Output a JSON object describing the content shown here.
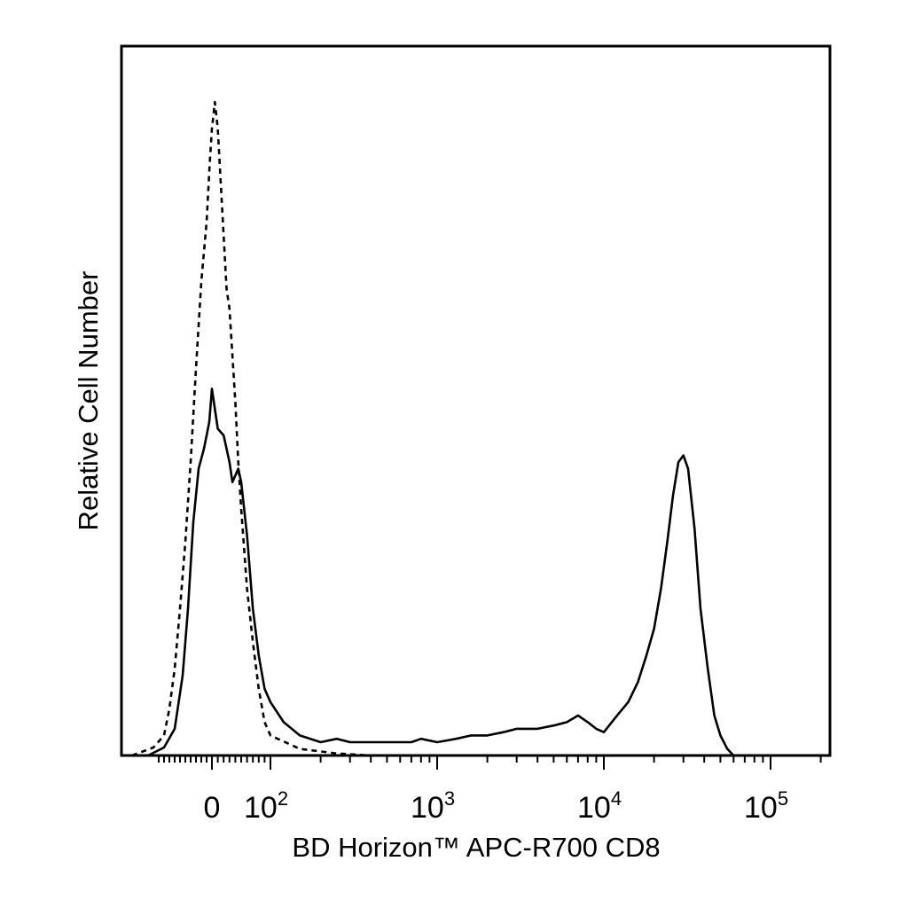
{
  "chart_data": {
    "type": "line",
    "title": "",
    "xlabel": "BD Horizon™ APC-R700 CD8",
    "ylabel": "Relative Cell Number",
    "x_scale": "biexponential (linear near 0, log above)",
    "xlim": [
      -200,
      250000
    ],
    "ylim": [
      0,
      1.0
    ],
    "grid": false,
    "legend": "none",
    "x_tick_labels": [
      {
        "value": 0,
        "label": "0"
      },
      {
        "value": 100,
        "base": "10",
        "exp": "2"
      },
      {
        "value": 1000,
        "base": "10",
        "exp": "3"
      },
      {
        "value": 10000,
        "base": "10",
        "exp": "4"
      },
      {
        "value": 100000,
        "base": "10",
        "exp": "5"
      }
    ],
    "series": [
      {
        "style": "dashed",
        "color": "#000000",
        "points": [
          [
            -150,
            0.0
          ],
          [
            -110,
            0.012
          ],
          [
            -90,
            0.03
          ],
          [
            -80,
            0.07
          ],
          [
            -70,
            0.13
          ],
          [
            -60,
            0.22
          ],
          [
            -50,
            0.32
          ],
          [
            -40,
            0.44
          ],
          [
            -30,
            0.58
          ],
          [
            -20,
            0.71
          ],
          [
            -10,
            0.8
          ],
          [
            -4,
            0.89
          ],
          [
            0,
            0.94
          ],
          [
            5,
            0.98
          ],
          [
            10,
            0.94
          ],
          [
            15,
            0.86
          ],
          [
            20,
            0.78
          ],
          [
            25,
            0.7
          ],
          [
            30,
            0.67
          ],
          [
            35,
            0.6
          ],
          [
            40,
            0.53
          ],
          [
            45,
            0.44
          ],
          [
            50,
            0.37
          ],
          [
            55,
            0.31
          ],
          [
            60,
            0.25
          ],
          [
            70,
            0.17
          ],
          [
            80,
            0.1
          ],
          [
            90,
            0.05
          ],
          [
            100,
            0.03
          ],
          [
            150,
            0.01
          ],
          [
            250,
            0.003
          ],
          [
            400,
            0.0
          ]
        ]
      },
      {
        "style": "solid",
        "color": "#000000",
        "points": [
          [
            -120,
            0.0
          ],
          [
            -90,
            0.012
          ],
          [
            -70,
            0.04
          ],
          [
            -55,
            0.12
          ],
          [
            -45,
            0.22
          ],
          [
            -35,
            0.35
          ],
          [
            -25,
            0.43
          ],
          [
            -15,
            0.46
          ],
          [
            -5,
            0.5
          ],
          [
            0,
            0.55
          ],
          [
            5,
            0.52
          ],
          [
            10,
            0.49
          ],
          [
            20,
            0.48
          ],
          [
            30,
            0.44
          ],
          [
            35,
            0.41
          ],
          [
            40,
            0.42
          ],
          [
            45,
            0.43
          ],
          [
            50,
            0.41
          ],
          [
            60,
            0.33
          ],
          [
            70,
            0.22
          ],
          [
            80,
            0.15
          ],
          [
            90,
            0.1
          ],
          [
            100,
            0.08
          ],
          [
            120,
            0.05
          ],
          [
            150,
            0.03
          ],
          [
            200,
            0.02
          ],
          [
            250,
            0.025
          ],
          [
            300,
            0.02
          ],
          [
            400,
            0.02
          ],
          [
            500,
            0.02
          ],
          [
            700,
            0.02
          ],
          [
            800,
            0.025
          ],
          [
            1000,
            0.02
          ],
          [
            1300,
            0.025
          ],
          [
            1600,
            0.03
          ],
          [
            2000,
            0.03
          ],
          [
            2500,
            0.035
          ],
          [
            3000,
            0.04
          ],
          [
            4000,
            0.04
          ],
          [
            5000,
            0.045
          ],
          [
            6000,
            0.05
          ],
          [
            7000,
            0.06
          ],
          [
            8000,
            0.05
          ],
          [
            9000,
            0.04
          ],
          [
            10000,
            0.035
          ],
          [
            12000,
            0.06
          ],
          [
            14000,
            0.08
          ],
          [
            16000,
            0.11
          ],
          [
            18000,
            0.15
          ],
          [
            20000,
            0.19
          ],
          [
            22000,
            0.25
          ],
          [
            24000,
            0.32
          ],
          [
            26000,
            0.39
          ],
          [
            28000,
            0.44
          ],
          [
            30000,
            0.45
          ],
          [
            32000,
            0.43
          ],
          [
            35000,
            0.34
          ],
          [
            38000,
            0.22
          ],
          [
            42000,
            0.13
          ],
          [
            46000,
            0.06
          ],
          [
            50000,
            0.03
          ],
          [
            55000,
            0.01
          ],
          [
            60000,
            0.0
          ]
        ]
      }
    ]
  }
}
